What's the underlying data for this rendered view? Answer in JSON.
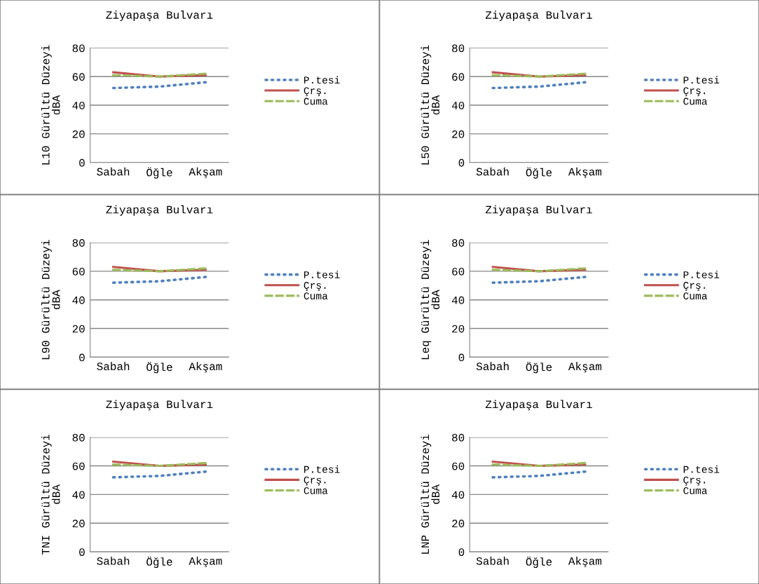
{
  "chart_data": [
    {
      "type": "line",
      "title": "Ziyapaşa Bulvarı",
      "ylabel": "L10 Gürültü Düzeyi\ndBA",
      "categories": [
        "Sabah",
        "Öğle",
        "Akşam"
      ],
      "ylim": [
        0,
        80
      ],
      "yticks": [
        0,
        20,
        40,
        60,
        80
      ],
      "grid": "y",
      "legend": "right",
      "series": [
        {
          "name": "P.tesi",
          "color": "#4f81bd",
          "line_style": "dotted",
          "values": [
            52,
            53,
            56
          ]
        },
        {
          "name": "Çrş.",
          "color": "#c0504d",
          "line_style": "solid",
          "values": [
            63,
            60,
            61
          ]
        },
        {
          "name": "Cuma",
          "color": "#9bbb59",
          "line_style": "dashed",
          "values": [
            61,
            60,
            62
          ]
        }
      ]
    },
    {
      "type": "line",
      "title": "Ziyapaşa Bulvarı",
      "ylabel": "L50 Gürültü Düzeyi\ndBA",
      "categories": [
        "Sabah",
        "Öğle",
        "Akşam"
      ],
      "ylim": [
        0,
        80
      ],
      "yticks": [
        0,
        20,
        40,
        60,
        80
      ],
      "grid": "y",
      "legend": "right",
      "series": [
        {
          "name": "P.tesi",
          "color": "#4f81bd",
          "line_style": "dotted",
          "values": [
            52,
            53,
            56
          ]
        },
        {
          "name": "Çrş.",
          "color": "#c0504d",
          "line_style": "solid",
          "values": [
            63,
            60,
            61
          ]
        },
        {
          "name": "Cuma",
          "color": "#9bbb59",
          "line_style": "dashed",
          "values": [
            61,
            60,
            62
          ]
        }
      ]
    },
    {
      "type": "line",
      "title": "Ziyapaşa Bulvarı",
      "ylabel": "L90 Gürültü Düzeyi\ndBA",
      "categories": [
        "Sabah",
        "Öğle",
        "Akşam"
      ],
      "ylim": [
        0,
        80
      ],
      "yticks": [
        0,
        20,
        40,
        60,
        80
      ],
      "grid": "y",
      "legend": "right",
      "series": [
        {
          "name": "P.tesi",
          "color": "#4f81bd",
          "line_style": "dotted",
          "values": [
            52,
            53,
            56
          ]
        },
        {
          "name": "Çrş.",
          "color": "#c0504d",
          "line_style": "solid",
          "values": [
            63,
            60,
            61
          ]
        },
        {
          "name": "Cuma",
          "color": "#9bbb59",
          "line_style": "dashed",
          "values": [
            61,
            60,
            62
          ]
        }
      ]
    },
    {
      "type": "line",
      "title": "Ziyapaşa Bulvarı",
      "ylabel": "Leq Gürültü Düzeyi\ndBA",
      "categories": [
        "Sabah",
        "Öğle",
        "Akşam"
      ],
      "ylim": [
        0,
        80
      ],
      "yticks": [
        0,
        20,
        40,
        60,
        80
      ],
      "grid": "y",
      "legend": "right",
      "series": [
        {
          "name": "P.tesi",
          "color": "#4f81bd",
          "line_style": "dotted",
          "values": [
            52,
            53,
            56
          ]
        },
        {
          "name": "Çrş.",
          "color": "#c0504d",
          "line_style": "solid",
          "values": [
            63,
            60,
            61
          ]
        },
        {
          "name": "Cuma",
          "color": "#9bbb59",
          "line_style": "dashed",
          "values": [
            61,
            60,
            62
          ]
        }
      ]
    },
    {
      "type": "line",
      "title": "Ziyapaşa Bulvarı",
      "ylabel": "TNI Gürültü Düzeyi\ndBA",
      "categories": [
        "Sabah",
        "Öğle",
        "Akşam"
      ],
      "ylim": [
        0,
        80
      ],
      "yticks": [
        0,
        20,
        40,
        60,
        80
      ],
      "grid": "y",
      "legend": "right",
      "series": [
        {
          "name": "P.tesi",
          "color": "#4f81bd",
          "line_style": "dotted",
          "values": [
            52,
            53,
            56
          ]
        },
        {
          "name": "Çrş.",
          "color": "#c0504d",
          "line_style": "solid",
          "values": [
            63,
            60,
            61
          ]
        },
        {
          "name": "Cuma",
          "color": "#9bbb59",
          "line_style": "dashed",
          "values": [
            61,
            60,
            62
          ]
        }
      ]
    },
    {
      "type": "line",
      "title": "Ziyapaşa Bulvarı",
      "ylabel": "LNP Gürültü Düzeyi\ndBA",
      "categories": [
        "Sabah",
        "Öğle",
        "Akşam"
      ],
      "ylim": [
        0,
        80
      ],
      "yticks": [
        0,
        20,
        40,
        60,
        80
      ],
      "grid": "y",
      "legend": "right",
      "series": [
        {
          "name": "P.tesi",
          "color": "#4f81bd",
          "line_style": "dotted",
          "values": [
            52,
            53,
            56
          ]
        },
        {
          "name": "Çrş.",
          "color": "#c0504d",
          "line_style": "solid",
          "values": [
            63,
            60,
            61
          ]
        },
        {
          "name": "Cuma",
          "color": "#9bbb59",
          "line_style": "dashed",
          "values": [
            61,
            60,
            62
          ]
        }
      ]
    }
  ]
}
